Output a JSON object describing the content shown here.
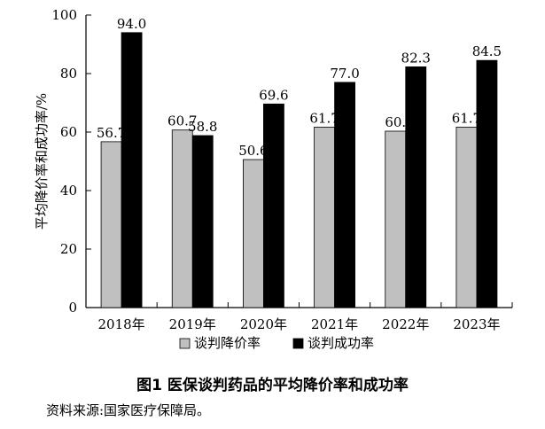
{
  "chart_data": {
    "type": "bar",
    "categories": [
      "2018年",
      "2019年",
      "2020年",
      "2021年",
      "2022年",
      "2023年"
    ],
    "series": [
      {
        "name": "谈判降价率",
        "values": [
          56.7,
          60.7,
          50.6,
          61.7,
          60.3,
          61.7
        ],
        "labels": [
          "56.7",
          "60.7",
          "50.6",
          "61.7",
          "60.",
          "61.7"
        ],
        "color": "#c0c0c0"
      },
      {
        "name": "谈判成功率",
        "values": [
          94.0,
          58.8,
          69.6,
          77.0,
          82.3,
          84.5
        ],
        "labels": [
          "94.0",
          "58.8",
          "69.6",
          "77.0",
          "82.3",
          "84.5"
        ],
        "color": "#000000"
      }
    ],
    "ylabel": "平均降价率和成功率/%",
    "xlabel": "",
    "ylim": [
      0,
      100
    ],
    "yticks": [
      0,
      20,
      40,
      60,
      80,
      100
    ],
    "legend": "bottom-center",
    "grid": false
  },
  "caption": "图1 医保谈判药品的平均降价率和成功率",
  "source": "资料来源:国家医疗保障局。"
}
